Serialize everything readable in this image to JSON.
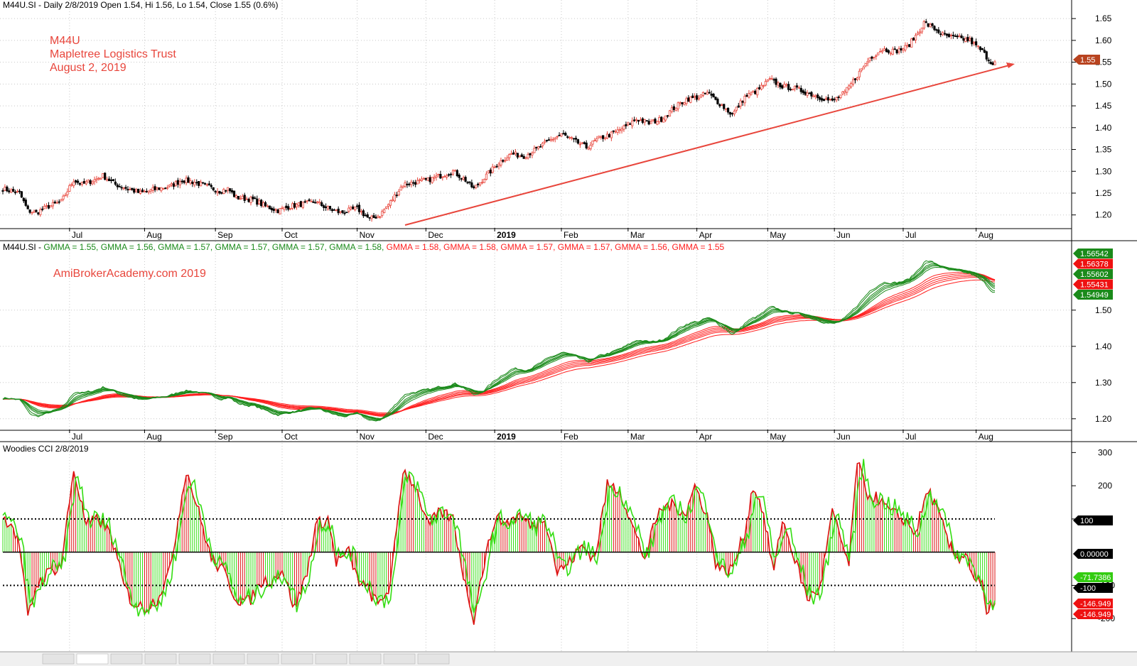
{
  "colors": {
    "up": "#e8463c",
    "down": "#000000",
    "gmma_short": "#1a8a1a",
    "gmma_long": "#ff2020",
    "cci_green": "#33dd11",
    "cci_red": "#dd1111",
    "trend": "#e8463c"
  },
  "month_labels": [
    "Jul",
    "Aug",
    "Sep",
    "Oct",
    "Nov",
    "Dec",
    "2019",
    "Feb",
    "Mar",
    "Apr",
    "May",
    "Jun",
    "Jul",
    "Aug"
  ],
  "panel1": {
    "header": "M44U.SI - Daily 2/8/2019 Open 1.54, Hi 1.56, Lo 1.54, Close 1.55 (0.6%)",
    "annotations": [
      "M44U",
      "Mapletree Logistics Trust",
      "August 2, 2019"
    ],
    "y_ticks": [
      "1.65",
      "1.60",
      "1.55",
      "1.50",
      "1.45",
      "1.40",
      "1.35",
      "1.30",
      "1.25",
      "1.20"
    ],
    "last_price_badge": "1.55"
  },
  "panel2": {
    "header_prefix": "M44U.SI - ",
    "header_items": [
      {
        "text": "GMMA = 1.55,",
        "color": "#1a8a1a"
      },
      {
        "text": "GMMA = 1.56,",
        "color": "#1a8a1a"
      },
      {
        "text": "GMMA = 1.57,",
        "color": "#1a8a1a"
      },
      {
        "text": "GMMA = 1.57,",
        "color": "#1a8a1a"
      },
      {
        "text": "GMMA = 1.57,",
        "color": "#1a8a1a"
      },
      {
        "text": "GMMA = 1.58,",
        "color": "#1a8a1a"
      },
      {
        "text": "GMMA = 1.58,",
        "color": "#ff2020"
      },
      {
        "text": "GMMA = 1.58,",
        "color": "#ff2020"
      },
      {
        "text": "GMMA = 1.57,",
        "color": "#ff2020"
      },
      {
        "text": "GMMA = 1.57,",
        "color": "#ff2020"
      },
      {
        "text": "GMMA = 1.56,",
        "color": "#ff2020"
      },
      {
        "text": "GMMA = 1.55",
        "color": "#ff2020"
      }
    ],
    "watermark": "AmiBrokerAcademy.com   2019",
    "y_ticks": [
      "1.50",
      "1.40",
      "1.30",
      "1.20"
    ],
    "badges": [
      {
        "text": "1.56542",
        "color": "#1a8a1a"
      },
      {
        "text": "1.56378",
        "color": "#ee1111"
      },
      {
        "text": "1.55602",
        "color": "#1a8a1a"
      },
      {
        "text": "1.55431",
        "color": "#ee1111"
      },
      {
        "text": "1.54949",
        "color": "#1a8a1a"
      }
    ]
  },
  "panel3": {
    "header": "Woodies CCI   2/8/2019",
    "y_ticks": [
      "300",
      "200",
      "100",
      "-100",
      "-200"
    ],
    "badges": [
      {
        "text": "100",
        "bg": "#000000",
        "fg": "#ffffff"
      },
      {
        "text": "0.00000",
        "bg": "#000000",
        "fg": "#ffffff"
      },
      {
        "text": "-71.7386",
        "bg": "#33cc11",
        "fg": "#000000"
      },
      {
        "text": "-100",
        "bg": "#000000",
        "fg": "#ffffff"
      },
      {
        "text": "-146.949",
        "bg": "#ee1111",
        "fg": "#ffffff"
      },
      {
        "text": "-146.949",
        "bg": "#ee1111",
        "fg": "#ffffff"
      }
    ]
  },
  "chart_data": {
    "type": "candlestick",
    "price_range": [
      1.18,
      1.66
    ],
    "cci_range": [
      -300,
      320
    ],
    "close_anchors": [
      [
        0,
        1.26
      ],
      [
        8,
        1.25
      ],
      [
        12,
        1.21
      ],
      [
        16,
        1.205
      ],
      [
        22,
        1.22
      ],
      [
        28,
        1.23
      ],
      [
        34,
        1.28
      ],
      [
        38,
        1.27
      ],
      [
        44,
        1.28
      ],
      [
        48,
        1.29
      ],
      [
        54,
        1.27
      ],
      [
        60,
        1.26
      ],
      [
        66,
        1.25
      ],
      [
        74,
        1.26
      ],
      [
        80,
        1.265
      ],
      [
        86,
        1.28
      ],
      [
        92,
        1.275
      ],
      [
        98,
        1.265
      ],
      [
        104,
        1.255
      ],
      [
        108,
        1.26
      ],
      [
        112,
        1.24
      ],
      [
        120,
        1.235
      ],
      [
        126,
        1.22
      ],
      [
        132,
        1.21
      ],
      [
        138,
        1.22
      ],
      [
        144,
        1.225
      ],
      [
        150,
        1.23
      ],
      [
        156,
        1.215
      ],
      [
        162,
        1.205
      ],
      [
        170,
        1.215
      ],
      [
        176,
        1.19
      ],
      [
        181,
        1.2
      ],
      [
        186,
        1.23
      ],
      [
        192,
        1.27
      ],
      [
        198,
        1.275
      ],
      [
        204,
        1.28
      ],
      [
        210,
        1.29
      ],
      [
        216,
        1.3
      ],
      [
        222,
        1.28
      ],
      [
        226,
        1.26
      ],
      [
        232,
        1.29
      ],
      [
        238,
        1.32
      ],
      [
        244,
        1.34
      ],
      [
        250,
        1.335
      ],
      [
        256,
        1.35
      ],
      [
        262,
        1.37
      ],
      [
        268,
        1.385
      ],
      [
        274,
        1.37
      ],
      [
        280,
        1.355
      ],
      [
        286,
        1.375
      ],
      [
        292,
        1.385
      ],
      [
        298,
        1.4
      ],
      [
        304,
        1.42
      ],
      [
        310,
        1.41
      ],
      [
        316,
        1.42
      ],
      [
        322,
        1.445
      ],
      [
        328,
        1.465
      ],
      [
        334,
        1.47
      ],
      [
        338,
        1.48
      ],
      [
        344,
        1.455
      ],
      [
        350,
        1.43
      ],
      [
        356,
        1.47
      ],
      [
        362,
        1.485
      ],
      [
        368,
        1.51
      ],
      [
        374,
        1.495
      ],
      [
        380,
        1.49
      ],
      [
        386,
        1.48
      ],
      [
        392,
        1.47
      ],
      [
        398,
        1.46
      ],
      [
        404,
        1.48
      ],
      [
        410,
        1.52
      ],
      [
        416,
        1.56
      ],
      [
        422,
        1.58
      ],
      [
        428,
        1.575
      ],
      [
        434,
        1.585
      ],
      [
        438,
        1.61
      ],
      [
        442,
        1.64
      ],
      [
        446,
        1.63
      ],
      [
        452,
        1.61
      ],
      [
        458,
        1.605
      ],
      [
        464,
        1.6
      ],
      [
        470,
        1.575
      ],
      [
        474,
        1.55
      ],
      [
        476,
        1.55
      ]
    ],
    "gmma_short": [
      {
        "period": 3,
        "latest": 1.55
      },
      {
        "period": 5,
        "latest": 1.56
      },
      {
        "period": 8,
        "latest": 1.57
      },
      {
        "period": 10,
        "latest": 1.57
      },
      {
        "period": 12,
        "latest": 1.57
      },
      {
        "period": 15,
        "latest": 1.58
      }
    ],
    "gmma_long": [
      {
        "period": 30,
        "latest": 1.58
      },
      {
        "period": 35,
        "latest": 1.58
      },
      {
        "period": 40,
        "latest": 1.57
      },
      {
        "period": 45,
        "latest": 1.57
      },
      {
        "period": 50,
        "latest": 1.56
      },
      {
        "period": 60,
        "latest": 1.55
      }
    ],
    "cci_anchors": [
      [
        0,
        100
      ],
      [
        4,
        90
      ],
      [
        8,
        20
      ],
      [
        12,
        -200
      ],
      [
        16,
        -100
      ],
      [
        22,
        -60
      ],
      [
        28,
        -40
      ],
      [
        34,
        250
      ],
      [
        40,
        80
      ],
      [
        46,
        100
      ],
      [
        52,
        50
      ],
      [
        58,
        -100
      ],
      [
        62,
        -150
      ],
      [
        68,
        -170
      ],
      [
        74,
        -140
      ],
      [
        80,
        -60
      ],
      [
        88,
        250
      ],
      [
        94,
        120
      ],
      [
        100,
        -20
      ],
      [
        106,
        -60
      ],
      [
        112,
        -140
      ],
      [
        118,
        -150
      ],
      [
        124,
        -90
      ],
      [
        130,
        -80
      ],
      [
        134,
        -50
      ],
      [
        140,
        -170
      ],
      [
        146,
        -60
      ],
      [
        150,
        80
      ],
      [
        156,
        100
      ],
      [
        160,
        -30
      ],
      [
        166,
        0
      ],
      [
        170,
        -80
      ],
      [
        176,
        -120
      ],
      [
        180,
        -160
      ],
      [
        186,
        -100
      ],
      [
        192,
        250
      ],
      [
        198,
        200
      ],
      [
        204,
        80
      ],
      [
        210,
        120
      ],
      [
        216,
        100
      ],
      [
        222,
        -100
      ],
      [
        226,
        -200
      ],
      [
        230,
        -60
      ],
      [
        236,
        100
      ],
      [
        242,
        90
      ],
      [
        248,
        110
      ],
      [
        254,
        80
      ],
      [
        260,
        110
      ],
      [
        266,
        -60
      ],
      [
        272,
        -30
      ],
      [
        278,
        20
      ],
      [
        284,
        -20
      ],
      [
        290,
        200
      ],
      [
        296,
        190
      ],
      [
        302,
        80
      ],
      [
        308,
        -20
      ],
      [
        314,
        110
      ],
      [
        318,
        140
      ],
      [
        322,
        140
      ],
      [
        328,
        120
      ],
      [
        332,
        200
      ],
      [
        338,
        110
      ],
      [
        342,
        -30
      ],
      [
        346,
        -60
      ],
      [
        350,
        -50
      ],
      [
        356,
        60
      ],
      [
        360,
        200
      ],
      [
        364,
        140
      ],
      [
        370,
        -60
      ],
      [
        374,
        100
      ],
      [
        380,
        -20
      ],
      [
        386,
        -140
      ],
      [
        392,
        -110
      ],
      [
        398,
        120
      ],
      [
        402,
        40
      ],
      [
        406,
        -40
      ],
      [
        410,
        280
      ],
      [
        414,
        180
      ],
      [
        420,
        160
      ],
      [
        426,
        120
      ],
      [
        432,
        100
      ],
      [
        438,
        60
      ],
      [
        444,
        190
      ],
      [
        450,
        100
      ],
      [
        454,
        20
      ],
      [
        458,
        -20
      ],
      [
        462,
        0
      ],
      [
        466,
        -80
      ],
      [
        470,
        -100
      ],
      [
        472,
        -200
      ],
      [
        476,
        -140
      ]
    ],
    "y_label": ""
  }
}
